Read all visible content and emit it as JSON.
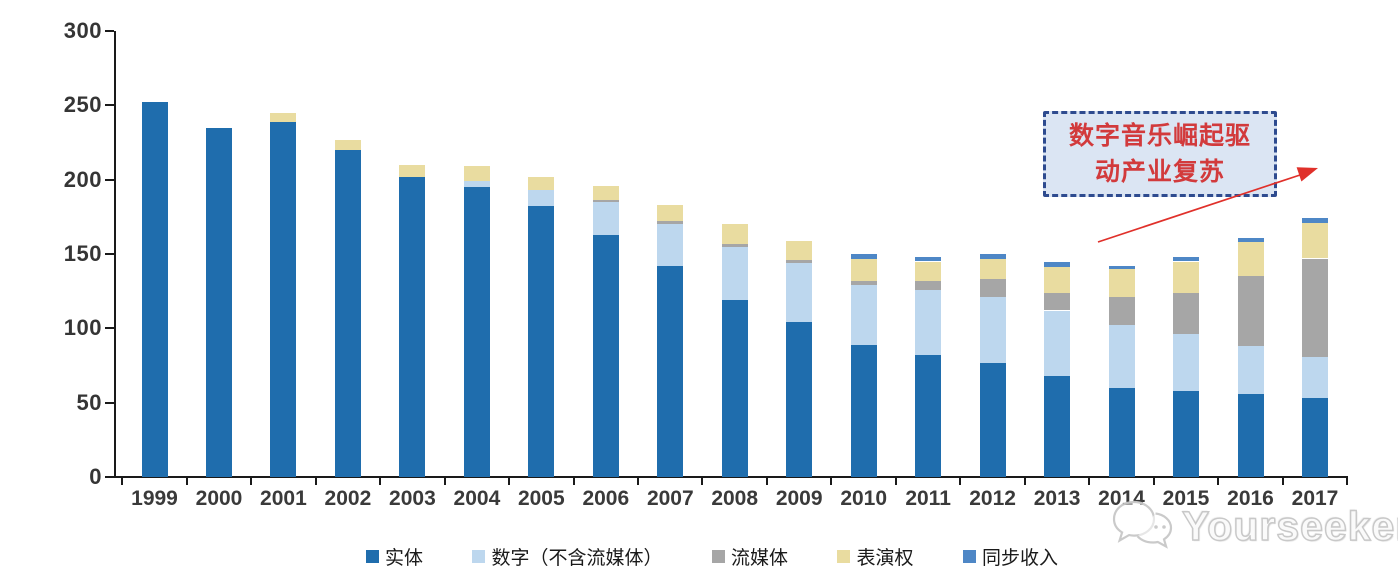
{
  "chart_data": {
    "type": "bar",
    "stacked": true,
    "title": "",
    "xlabel": "",
    "ylabel": "",
    "categories": [
      "1999",
      "2000",
      "2001",
      "2002",
      "2003",
      "2004",
      "2005",
      "2006",
      "2007",
      "2008",
      "2009",
      "2010",
      "2011",
      "2012",
      "2013",
      "2014",
      "2015",
      "2016",
      "2017"
    ],
    "series": [
      {
        "name": "实体",
        "color": "#1F6DAD",
        "values": [
          252,
          235,
          239,
          220,
          202,
          195,
          182,
          163,
          142,
          119,
          104,
          89,
          82,
          77,
          68,
          60,
          58,
          56,
          53
        ]
      },
      {
        "name": "数字（不含流媒体）",
        "color": "#BDD7EE",
        "values": [
          0,
          0,
          0,
          0,
          0,
          4,
          11,
          22,
          28,
          36,
          40,
          40,
          44,
          44,
          44,
          42,
          38,
          32,
          28
        ]
      },
      {
        "name": "流媒体",
        "color": "#A6A6A6",
        "values": [
          0,
          0,
          0,
          0,
          0,
          0,
          0,
          1,
          2,
          2,
          2,
          3,
          6,
          12,
          12,
          19,
          28,
          47,
          66
        ]
      },
      {
        "name": "表演权",
        "color": "#E9DCA0",
        "values": [
          0,
          0,
          6,
          7,
          8,
          10,
          9,
          10,
          11,
          13,
          13,
          15,
          13,
          14,
          17,
          19,
          21,
          23,
          24
        ]
      },
      {
        "name": "同步收入",
        "color": "#4E87C6",
        "values": [
          0,
          0,
          0,
          0,
          0,
          0,
          0,
          0,
          0,
          0,
          0,
          3,
          3,
          3,
          4,
          2,
          3,
          3,
          3
        ]
      }
    ],
    "ylim": [
      0,
      300
    ],
    "yticks": [
      0,
      50,
      100,
      150,
      200,
      250,
      300
    ],
    "grid": false,
    "legend_position": "bottom"
  },
  "annotation": {
    "line1": "数字音乐崛起驱",
    "line2": "动产业复苏",
    "text_color": "#D23A3C",
    "box_fill": "#DBE5F3",
    "box_border": "#2E4B8F",
    "arrow_color": "#E0302A"
  },
  "watermark": {
    "text": "Yourseeker",
    "color": "#C6C6C6"
  }
}
